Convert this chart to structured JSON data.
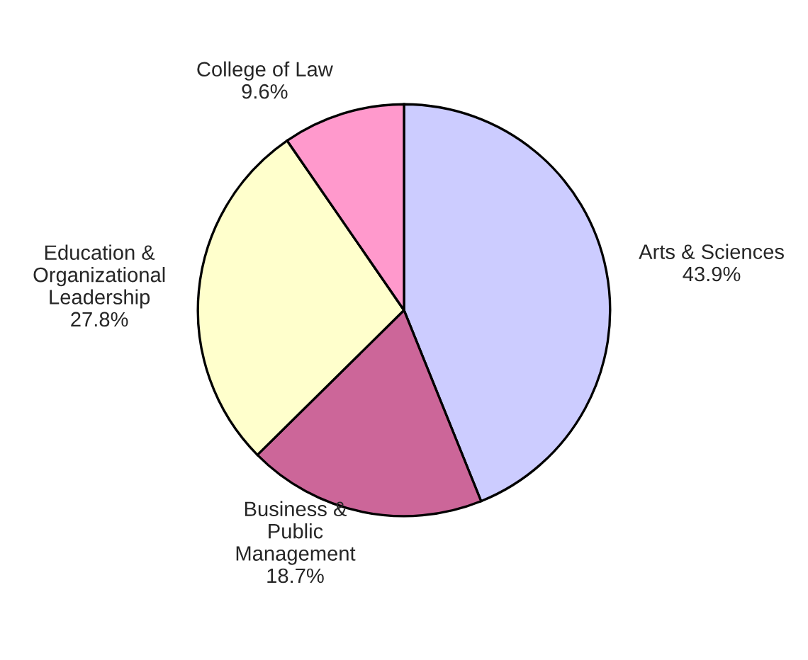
{
  "chart_data": {
    "type": "pie",
    "categories": [
      "Arts & Sciences",
      "Business & Public Management",
      "Education & Organizational Leadership",
      "College of Law"
    ],
    "values": [
      43.9,
      18.7,
      27.8,
      9.6
    ],
    "colors": [
      "#ccccff",
      "#cc6699",
      "#ffffcc",
      "#ff99cc"
    ],
    "value_labels": [
      "43.9%",
      "18.7%",
      "27.8%",
      "9.6%"
    ]
  }
}
